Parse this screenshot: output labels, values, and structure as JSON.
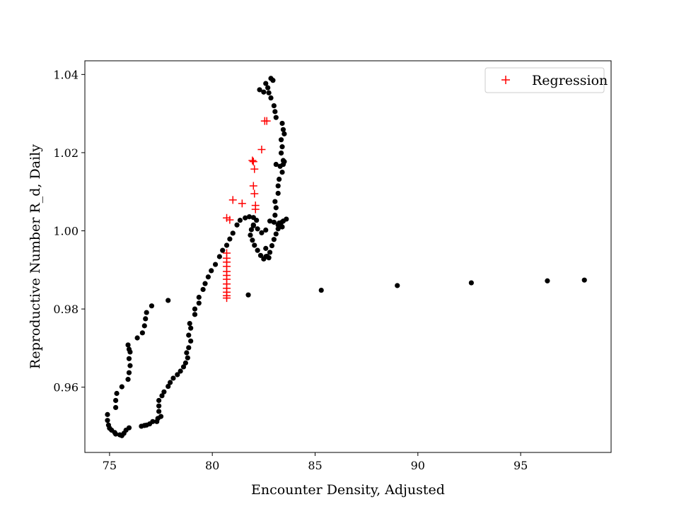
{
  "chart_data": {
    "type": "scatter",
    "xlabel": "Encounter Density, Adjusted",
    "ylabel": "Reproductive Number R_d, Daily",
    "xlim": [
      73.8,
      99.4
    ],
    "ylim": [
      0.9433,
      1.0435
    ],
    "x_ticks": [
      {
        "value": 75,
        "label": "75"
      },
      {
        "value": 80,
        "label": "80"
      },
      {
        "value": 85,
        "label": "85"
      },
      {
        "value": 90,
        "label": "90"
      },
      {
        "value": 95,
        "label": "95"
      }
    ],
    "y_ticks": [
      {
        "value": 0.96,
        "label": "0.96"
      },
      {
        "value": 0.98,
        "label": "0.98"
      },
      {
        "value": 1.0,
        "label": "1.00"
      },
      {
        "value": 1.02,
        "label": "1.02"
      },
      {
        "value": 1.04,
        "label": "1.04"
      }
    ],
    "legend": {
      "position": "top-right",
      "entries": [
        {
          "label": "Regression",
          "marker": "+",
          "color": "#ff0000"
        }
      ]
    },
    "grid": false,
    "series": [
      {
        "marker": "dot",
        "color": "#000000",
        "points": [
          [
            74.9,
            0.953
          ],
          [
            74.9,
            0.9515
          ],
          [
            74.95,
            0.9503
          ],
          [
            75.0,
            0.9495
          ],
          [
            75.1,
            0.949
          ],
          [
            75.25,
            0.9484
          ],
          [
            75.3,
            0.948
          ],
          [
            75.5,
            0.9478
          ],
          [
            75.6,
            0.9476
          ],
          [
            75.7,
            0.9482
          ],
          [
            75.8,
            0.949
          ],
          [
            75.95,
            0.9496
          ],
          [
            75.35,
            0.9584
          ],
          [
            75.3,
            0.9566
          ],
          [
            75.3,
            0.9548
          ],
          [
            75.6,
            0.9601
          ],
          [
            75.9,
            0.962
          ],
          [
            75.95,
            0.9637
          ],
          [
            76.0,
            0.9655
          ],
          [
            75.95,
            0.9673
          ],
          [
            76.0,
            0.969
          ],
          [
            75.9,
            0.9708
          ],
          [
            75.95,
            0.9697
          ],
          [
            76.35,
            0.9726
          ],
          [
            76.6,
            0.9739
          ],
          [
            76.7,
            0.9757
          ],
          [
            76.75,
            0.9775
          ],
          [
            76.8,
            0.9791
          ],
          [
            77.05,
            0.9808
          ],
          [
            77.85,
            0.9822
          ],
          [
            76.55,
            0.95
          ],
          [
            76.7,
            0.9502
          ],
          [
            76.8,
            0.9503
          ],
          [
            76.95,
            0.9506
          ],
          [
            77.1,
            0.9512
          ],
          [
            77.3,
            0.9512
          ],
          [
            77.35,
            0.952
          ],
          [
            77.5,
            0.9525
          ],
          [
            77.4,
            0.9538
          ],
          [
            77.4,
            0.9552
          ],
          [
            77.4,
            0.9566
          ],
          [
            77.55,
            0.9578
          ],
          [
            77.65,
            0.9588
          ],
          [
            77.85,
            0.9602
          ],
          [
            77.95,
            0.9612
          ],
          [
            78.1,
            0.9623
          ],
          [
            78.3,
            0.9632
          ],
          [
            78.45,
            0.9641
          ],
          [
            78.6,
            0.9652
          ],
          [
            78.7,
            0.9662
          ],
          [
            78.8,
            0.9675
          ],
          [
            78.75,
            0.9688
          ],
          [
            78.85,
            0.9701
          ],
          [
            78.95,
            0.9718
          ],
          [
            78.85,
            0.9733
          ],
          [
            78.95,
            0.9751
          ],
          [
            78.9,
            0.9763
          ],
          [
            79.15,
            0.9786
          ],
          [
            79.15,
            0.98
          ],
          [
            79.35,
            0.9815
          ],
          [
            79.35,
            0.983
          ],
          [
            79.55,
            0.985
          ],
          [
            79.65,
            0.9865
          ],
          [
            79.8,
            0.9882
          ],
          [
            79.95,
            0.9898
          ],
          [
            80.15,
            0.9914
          ],
          [
            80.35,
            0.9934
          ],
          [
            80.5,
            0.995
          ],
          [
            80.7,
            0.9963
          ],
          [
            80.85,
            0.9979
          ],
          [
            81.0,
            0.9994
          ],
          [
            81.2,
            1.0015
          ],
          [
            81.35,
            1.0027
          ],
          [
            81.6,
            1.0033
          ],
          [
            81.8,
            1.0036
          ],
          [
            82.0,
            1.0034
          ],
          [
            82.15,
            1.0027
          ],
          [
            82.0,
            1.0015
          ],
          [
            81.9,
            1.0003
          ],
          [
            81.85,
            0.9989
          ],
          [
            81.95,
            0.9976
          ],
          [
            82.05,
            0.9963
          ],
          [
            82.2,
            0.995
          ],
          [
            82.35,
            0.9937
          ],
          [
            82.5,
            0.9928
          ],
          [
            82.6,
            0.9934
          ],
          [
            82.75,
            0.9931
          ],
          [
            82.8,
            0.9945
          ],
          [
            82.9,
            0.9962
          ],
          [
            83.0,
            0.9978
          ],
          [
            83.1,
            0.9992
          ],
          [
            83.2,
            1.0005
          ],
          [
            83.25,
            1.002
          ],
          [
            83.05,
            1.004
          ],
          [
            83.1,
            1.0059
          ],
          [
            83.05,
            1.0075
          ],
          [
            83.2,
            1.0096
          ],
          [
            83.2,
            1.0115
          ],
          [
            83.25,
            1.0132
          ],
          [
            83.4,
            1.015
          ],
          [
            83.45,
            1.017
          ],
          [
            83.5,
            1.0177
          ],
          [
            83.35,
            1.0199
          ],
          [
            83.4,
            1.0215
          ],
          [
            83.35,
            1.0233
          ],
          [
            83.5,
            1.0248
          ],
          [
            83.45,
            1.0259
          ],
          [
            83.4,
            1.0275
          ],
          [
            83.1,
            1.029
          ],
          [
            83.05,
            1.0305
          ],
          [
            83.0,
            1.032
          ],
          [
            82.85,
            1.034
          ],
          [
            82.75,
            1.0353
          ],
          [
            82.7,
            1.0366
          ],
          [
            82.6,
            1.0377
          ],
          [
            82.95,
            1.0385
          ],
          [
            82.85,
            1.039
          ],
          [
            82.5,
            1.0355
          ],
          [
            82.3,
            1.0361
          ],
          [
            82.0,
            1.0013
          ],
          [
            82.2,
            1.0005
          ],
          [
            82.4,
            0.9995
          ],
          [
            82.6,
            1.0002
          ],
          [
            82.8,
            1.0025
          ],
          [
            83.0,
            1.0022
          ],
          [
            83.2,
            1.0015
          ],
          [
            83.4,
            1.001
          ],
          [
            83.35,
            1.0021
          ],
          [
            83.45,
            1.0025
          ],
          [
            83.6,
            1.003
          ],
          [
            83.1,
            1.017
          ],
          [
            83.3,
            1.0165
          ],
          [
            83.45,
            1.018
          ],
          [
            82.6,
            0.9955
          ],
          [
            82.65,
            0.9935
          ],
          [
            81.75,
            0.9836
          ],
          [
            85.3,
            0.9848
          ],
          [
            89.0,
            0.986
          ],
          [
            92.6,
            0.9867
          ],
          [
            96.3,
            0.9872
          ],
          [
            98.1,
            0.9874
          ]
        ]
      },
      {
        "name": "Regression",
        "marker": "+",
        "color": "#ff0000",
        "points": [
          [
            80.7,
            0.9943
          ],
          [
            80.7,
            0.993
          ],
          [
            80.7,
            0.992
          ],
          [
            80.7,
            0.9909
          ],
          [
            80.7,
            0.9896
          ],
          [
            80.7,
            0.9886
          ],
          [
            80.7,
            0.9876
          ],
          [
            80.7,
            0.9864
          ],
          [
            80.7,
            0.9853
          ],
          [
            80.7,
            0.9843
          ],
          [
            80.7,
            0.9834
          ],
          [
            80.7,
            0.9828
          ],
          [
            80.7,
            1.0033
          ],
          [
            80.85,
            1.0028
          ],
          [
            81.0,
            1.0079
          ],
          [
            81.45,
            1.007
          ],
          [
            82.0,
            1.0115
          ],
          [
            82.05,
            1.0095
          ],
          [
            82.1,
            1.0065
          ],
          [
            82.1,
            1.0055
          ],
          [
            82.05,
            1.0158
          ],
          [
            82.0,
            1.0177
          ],
          [
            81.95,
            1.018
          ],
          [
            82.4,
            1.0208
          ],
          [
            82.55,
            1.0281
          ],
          [
            82.65,
            1.0281
          ]
        ]
      }
    ]
  }
}
